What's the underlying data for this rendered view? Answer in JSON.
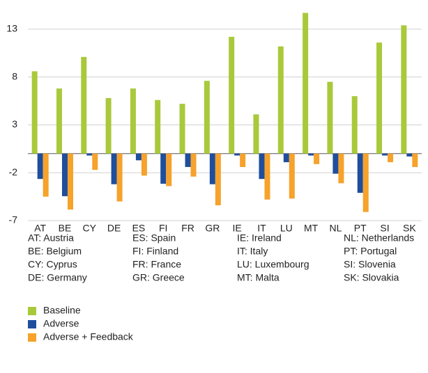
{
  "chart_data": {
    "type": "bar",
    "categories": [
      "AT",
      "BE",
      "CY",
      "DE",
      "ES",
      "FI",
      "FR",
      "GR",
      "IE",
      "IT",
      "LU",
      "MT",
      "NL",
      "PT",
      "SI",
      "SK"
    ],
    "series": [
      {
        "name": "Baseline",
        "color": "#a9c93b",
        "values": [
          8.6,
          6.8,
          10.1,
          5.8,
          6.8,
          5.6,
          5.2,
          7.6,
          12.2,
          4.1,
          11.2,
          14.7,
          7.5,
          6.0,
          11.6,
          13.4
        ]
      },
      {
        "name": "Adverse",
        "color": "#1f4e9c",
        "values": [
          -2.65,
          -4.45,
          -0.2,
          -3.2,
          -0.7,
          -3.15,
          -1.4,
          -3.2,
          -0.2,
          -2.65,
          -0.9,
          -0.2,
          -2.1,
          -4.1,
          -0.2,
          -0.3
        ]
      },
      {
        "name": "Adverse + Feedback",
        "color": "#f6a22b",
        "values": [
          -4.5,
          -5.85,
          -1.7,
          -5.0,
          -2.3,
          -3.4,
          -2.4,
          -5.4,
          -1.4,
          -4.8,
          -4.7,
          -1.1,
          -3.1,
          -6.1,
          -0.9,
          -1.4
        ]
      }
    ],
    "ylim": [
      -7,
      15
    ],
    "yticks": [
      13,
      8,
      3,
      -2,
      -7
    ],
    "grid": true,
    "notes": [
      "AT: Austria",
      "BE: Belgium",
      "CY: Cyprus",
      "DE: Germany",
      "ES: Spain",
      "FI: Finland",
      "FR: France",
      "GR: Greece",
      "IE: Ireland",
      "IT: Italy",
      "LU: Luxembourg",
      "MT: Malta",
      "NL: Netherlands",
      "PT: Portugal",
      "SI: Slovenia",
      "SK: Slovakia"
    ]
  }
}
